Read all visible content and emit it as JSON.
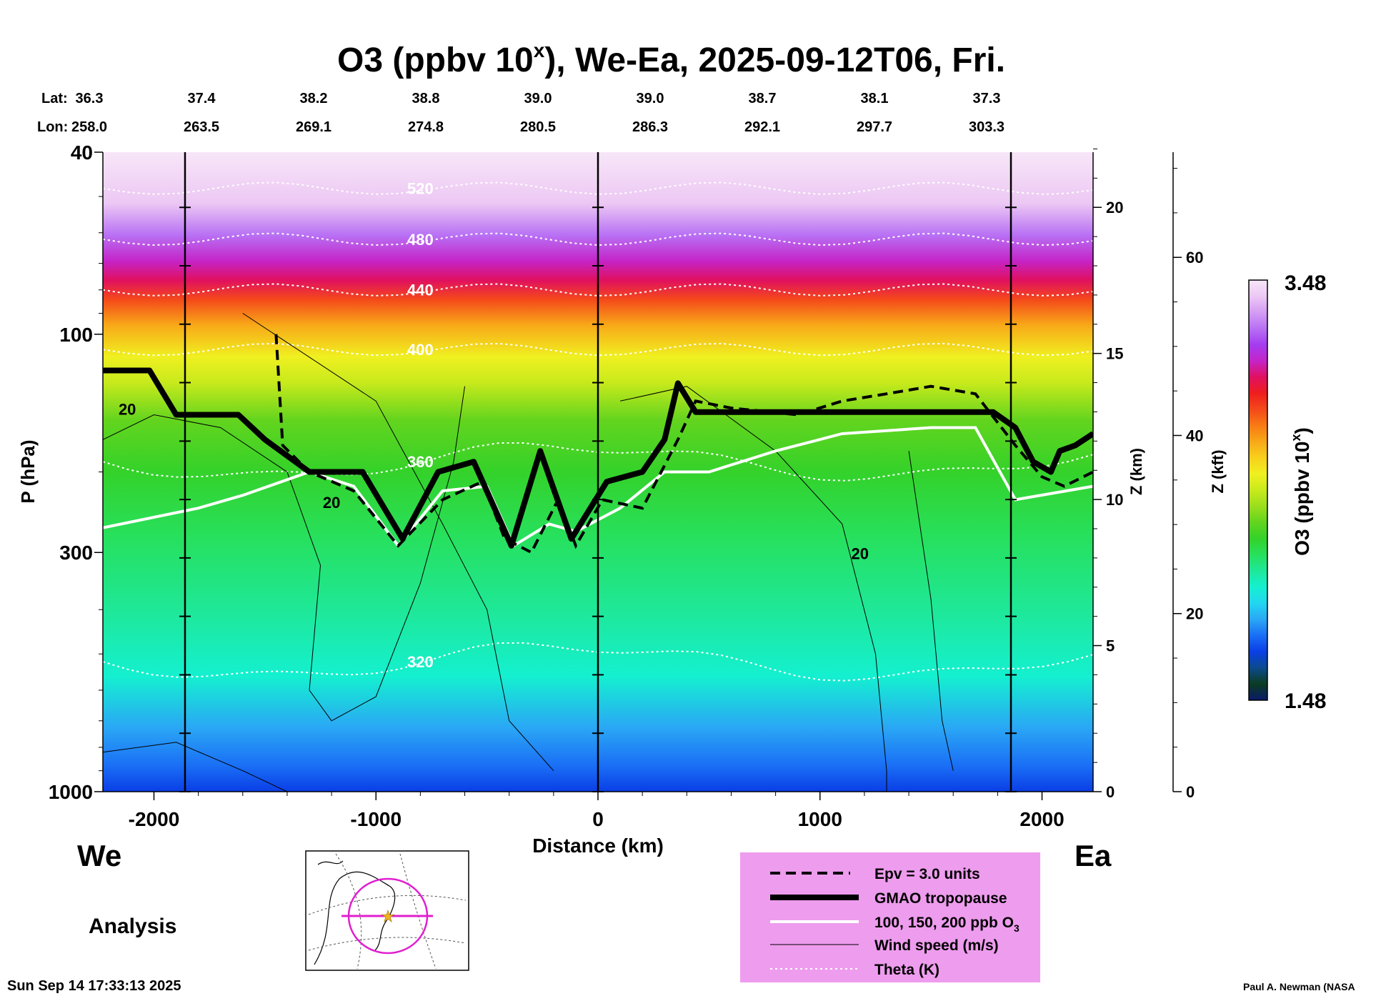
{
  "chart_data": {
    "type": "heatmap",
    "title_main": "O3 (ppbv 10",
    "title_sup": "x",
    "title_rest": "), We-Ea, 2025-09-12T06, Fri.",
    "lat_label": "Lat:",
    "lon_label": "Lon:",
    "lats": [
      "36.3",
      "37.4",
      "38.2",
      "38.8",
      "39.0",
      "39.0",
      "38.7",
      "38.1",
      "37.3"
    ],
    "lons": [
      "258.0",
      "263.5",
      "269.1",
      "274.8",
      "280.5",
      "286.3",
      "292.1",
      "297.7",
      "303.3"
    ],
    "xlabel": "Distance (km)",
    "xlim": [
      -2230,
      2230
    ],
    "xticks": [
      "-2000",
      "-1000",
      "0",
      "1000",
      "2000"
    ],
    "xtick_values": [
      -2000,
      -1000,
      0,
      1000,
      2000
    ],
    "vertical_line_positions_km": [
      -1860,
      0,
      1860
    ],
    "ylabel": "P (hPa)",
    "ylim": [
      1000,
      40
    ],
    "yticks": [
      "40",
      "100",
      "300",
      "1000"
    ],
    "ytick_values": [
      40,
      100,
      300,
      1000
    ],
    "z_km_label": "Z (km)",
    "z_km_ticks": [
      "0",
      "5",
      "10",
      "15",
      "20"
    ],
    "z_km_values": [
      0,
      5,
      10,
      15,
      20
    ],
    "z_kft_label": "Z (kft)",
    "z_kft_ticks": [
      "0",
      "20",
      "40",
      "60"
    ],
    "z_kft_values": [
      0,
      20,
      40,
      60
    ],
    "colorbar_label": "O3 (ppbv 10",
    "colorbar_sup": "x",
    "colorbar_label_end": ")",
    "colorbar_max": "3.48",
    "colorbar_min": "1.48",
    "colorbar_range": [
      1.48,
      3.48
    ],
    "colorbar_colors": [
      "#0a1a6a",
      "#0b3b22",
      "#0b4a8c",
      "#0a3ee6",
      "#1a6ef5",
      "#2aa7f5",
      "#22d6f0",
      "#14f0d0",
      "#1ee89a",
      "#27e05c",
      "#34d22a",
      "#62d41e",
      "#9ade1c",
      "#c8ea1c",
      "#f0f020",
      "#f8d01c",
      "#f8a818",
      "#f87a14",
      "#f4481a",
      "#ee1e1e",
      "#e01060",
      "#c424c8",
      "#a43cf0",
      "#b870f4",
      "#d49cf4",
      "#ecc8f4",
      "#f8e6f8"
    ],
    "theta_labels": [
      "520",
      "480",
      "440",
      "400",
      "360",
      "320"
    ],
    "theta_levels_K": [
      520,
      480,
      440,
      400,
      360,
      320
    ],
    "wind_labels": [
      "20",
      "20",
      "20"
    ],
    "wind_levels_ms": [
      20
    ],
    "gmao_tropopause_hPa": [
      [
        -2230,
        120
      ],
      [
        -2020,
        120
      ],
      [
        -1900,
        150
      ],
      [
        -1620,
        150
      ],
      [
        -1500,
        170
      ],
      [
        -1300,
        200
      ],
      [
        -1060,
        200
      ],
      [
        -880,
        280
      ],
      [
        -720,
        200
      ],
      [
        -560,
        190
      ],
      [
        -390,
        290
      ],
      [
        -260,
        180
      ],
      [
        -120,
        280
      ],
      [
        40,
        210
      ],
      [
        200,
        200
      ],
      [
        300,
        170
      ],
      [
        360,
        128
      ],
      [
        440,
        148
      ],
      [
        960,
        148
      ],
      [
        1580,
        148
      ],
      [
        1780,
        148
      ],
      [
        1880,
        160
      ],
      [
        1960,
        190
      ],
      [
        2040,
        200
      ],
      [
        2080,
        180
      ],
      [
        2150,
        175
      ],
      [
        2230,
        165
      ]
    ],
    "epv_3_units_hPa": [
      [
        -1450,
        100
      ],
      [
        -1420,
        175
      ],
      [
        -1300,
        200
      ],
      [
        -1100,
        220
      ],
      [
        -900,
        290
      ],
      [
        -700,
        230
      ],
      [
        -520,
        210
      ],
      [
        -420,
        280
      ],
      [
        -300,
        300
      ],
      [
        -180,
        230
      ],
      [
        -100,
        290
      ],
      [
        20,
        230
      ],
      [
        200,
        240
      ],
      [
        360,
        170
      ],
      [
        440,
        140
      ],
      [
        600,
        145
      ],
      [
        900,
        150
      ],
      [
        1100,
        140
      ],
      [
        1300,
        135
      ],
      [
        1500,
        130
      ],
      [
        1700,
        135
      ],
      [
        1880,
        175
      ],
      [
        2000,
        205
      ],
      [
        2100,
        215
      ],
      [
        2230,
        200
      ]
    ],
    "ozone_100ppb_hPa": [
      [
        -2230,
        265
      ],
      [
        -1800,
        240
      ],
      [
        -1600,
        225
      ],
      [
        -1300,
        200
      ],
      [
        -1100,
        215
      ],
      [
        -900,
        290
      ],
      [
        -700,
        220
      ],
      [
        -500,
        215
      ],
      [
        -380,
        290
      ],
      [
        -220,
        260
      ],
      [
        -100,
        270
      ],
      [
        100,
        240
      ],
      [
        300,
        200
      ],
      [
        500,
        200
      ],
      [
        800,
        180
      ],
      [
        1100,
        165
      ],
      [
        1500,
        160
      ],
      [
        1700,
        160
      ],
      [
        1880,
        230
      ],
      [
        2230,
        215
      ]
    ],
    "legend": [
      {
        "label": "Epv = 3.0 units",
        "style": "dashed"
      },
      {
        "label": "GMAO tropopause",
        "style": "thick"
      },
      {
        "label": "100, 150, 200 ppb O",
        "sub": "3",
        "style": "white"
      },
      {
        "label": "Wind speed (m/s)",
        "style": "thin"
      },
      {
        "label": "Theta (K)",
        "style": "dotted"
      }
    ],
    "legend_background": "#ee9cee",
    "left_label": "We",
    "right_label": "Ea",
    "analysis_label": "Analysis",
    "timestamp": "Sun Sep 14 17:33:13 2025",
    "credit": "Paul A. Newman (NASA"
  }
}
